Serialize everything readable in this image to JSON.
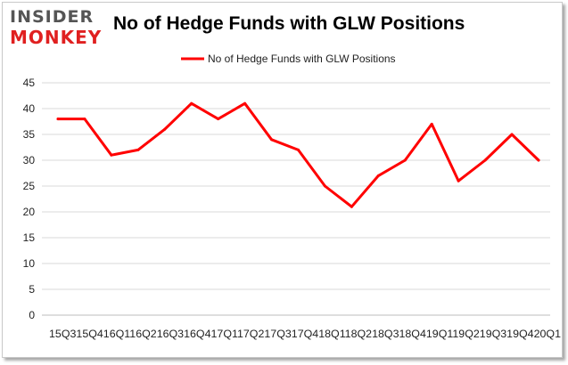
{
  "brand": {
    "logo_top": "INSIDER",
    "logo_bottom": "MONKEY"
  },
  "chart_data": {
    "type": "line",
    "title": "No of Hedge Funds with GLW Positions",
    "categories": [
      "2015Q3",
      "2015Q4",
      "2016Q1",
      "2016Q2",
      "2016Q3",
      "2016Q4",
      "2017Q1",
      "2017Q2",
      "2017Q3",
      "2017Q4",
      "2018Q1",
      "2018Q2",
      "2018Q3",
      "2018Q4",
      "2019Q1",
      "2019Q2",
      "2019Q3",
      "2019Q4",
      "2020Q1"
    ],
    "xtick_text": "15Q315Q416Q116Q216Q316Q417Q117Q217Q317Q418Q118Q218Q318Q419Q119Q219Q319Q420Q1",
    "series": [
      {
        "name": "No of Hedge Funds with GLW Positions",
        "values": [
          38,
          38,
          31,
          32,
          36,
          41,
          38,
          41,
          34,
          32,
          25,
          21,
          27,
          30,
          37,
          26,
          30,
          35,
          30
        ],
        "color": "#ff0000"
      }
    ],
    "ylim": [
      0,
      45
    ],
    "yticks": [
      0,
      5,
      10,
      15,
      20,
      25,
      30,
      35,
      40,
      45
    ],
    "grid": true,
    "legend": "top-center",
    "xlabel": "",
    "ylabel": ""
  }
}
